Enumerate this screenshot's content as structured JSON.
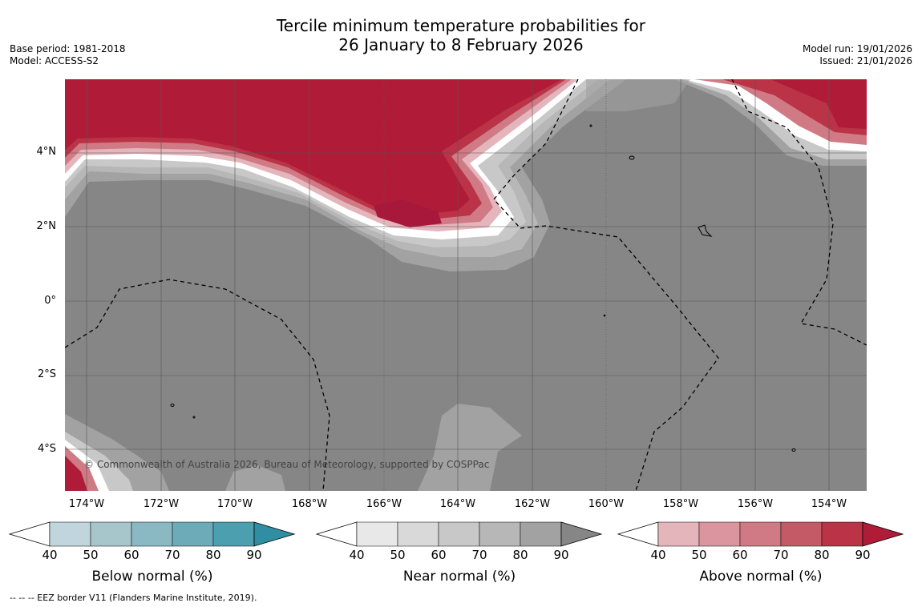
{
  "title_line1": "Tercile minimum temperature probabilities for",
  "title_line2": "26 January to 8 February 2026",
  "base_period": "Base period: 1981-2018",
  "model": "Model: ACCESS-S2",
  "model_run": "Model run: 19/01/2026",
  "issued": "Issued: 21/01/2026",
  "lat_labels": [
    "4°N",
    "2°N",
    "0°",
    "2°S",
    "4°S"
  ],
  "lon_labels": [
    "174°W",
    "172°W",
    "170°W",
    "168°W",
    "166°W",
    "164°W",
    "162°W",
    "160°W",
    "158°W",
    "156°W",
    "154°W"
  ],
  "credit": "© Commonwealth of Australia 2026, Bureau of Meteorology, supported by COSPPac",
  "colorbars": [
    {
      "label": "Below normal (%)",
      "ticks": [
        "40",
        "50",
        "60",
        "70",
        "80",
        "90"
      ],
      "colors": [
        "#c0d6dc",
        "#a7c6cc",
        "#8ab8c3",
        "#6eabb9",
        "#4c9fae",
        "#2f8ea2"
      ]
    },
    {
      "label": "Near normal (%)",
      "ticks": [
        "40",
        "50",
        "60",
        "70",
        "80",
        "90"
      ],
      "colors": [
        "#e8e8e8",
        "#d9d9d9",
        "#c8c8c8",
        "#b7b7b7",
        "#a2a2a2",
        "#868686"
      ]
    },
    {
      "label": "Above normal (%)",
      "ticks": [
        "40",
        "50",
        "60",
        "70",
        "80",
        "90"
      ],
      "colors": [
        "#e4b5bb",
        "#da959f",
        "#cf7a84",
        "#c55a67",
        "#ba3347",
        "#b01c38"
      ]
    }
  ],
  "footnote": "--  --  -- EEZ border V11 (Flanders Marine Institute, 2019)."
}
